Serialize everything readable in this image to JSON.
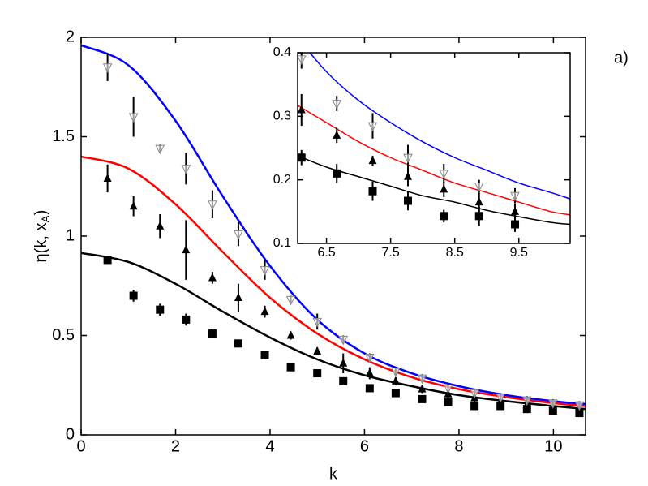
{
  "chart_data": [
    {
      "type": "scatter",
      "panel": "main",
      "annotation": "a)",
      "xlabel": "k",
      "ylabel": {
        "text": "η(k, x",
        "subscript": "A",
        "suffix": ")"
      },
      "xlim": [
        0,
        10.68
      ],
      "ylim": [
        0,
        2
      ],
      "xticks": [
        0,
        2,
        4,
        6,
        8,
        10
      ],
      "yticks": [
        0,
        0.5,
        1,
        1.5,
        2
      ],
      "series": [
        {
          "kind": "line",
          "color": "#0000ff",
          "x": [
            0,
            1,
            2,
            3,
            4,
            5,
            6,
            7,
            8,
            9,
            10,
            10.68
          ],
          "values": [
            1.96,
            1.86,
            1.58,
            1.2,
            0.85,
            0.58,
            0.41,
            0.31,
            0.245,
            0.2,
            0.17,
            0.155
          ]
        },
        {
          "kind": "line",
          "color": "#ff0000",
          "x": [
            0,
            1,
            2,
            3,
            4,
            5,
            6,
            7,
            8,
            9,
            10,
            10.68
          ],
          "values": [
            1.4,
            1.34,
            1.16,
            0.92,
            0.69,
            0.51,
            0.38,
            0.29,
            0.23,
            0.19,
            0.16,
            0.145
          ]
        },
        {
          "kind": "line",
          "color": "#000000",
          "x": [
            0,
            1,
            2,
            3,
            4,
            5,
            6,
            7,
            8,
            9,
            10,
            10.68
          ],
          "values": [
            0.915,
            0.87,
            0.76,
            0.62,
            0.49,
            0.38,
            0.3,
            0.245,
            0.2,
            0.17,
            0.145,
            0.13
          ]
        },
        {
          "kind": "points",
          "marker": "square",
          "color": "#000000",
          "x": [
            0.56,
            1.11,
            1.67,
            2.22,
            2.78,
            3.33,
            3.89,
            4.44,
            5.0,
            5.55,
            6.11,
            6.66,
            7.22,
            7.77,
            8.33,
            8.88,
            9.44,
            9.99,
            10.55
          ],
          "values": [
            0.88,
            0.7,
            0.63,
            0.58,
            0.51,
            0.46,
            0.4,
            0.34,
            0.31,
            0.27,
            0.235,
            0.21,
            0.18,
            0.165,
            0.145,
            0.145,
            0.13,
            0.12,
            0.11
          ],
          "errors": [
            0.02,
            0.03,
            0.03,
            0.03,
            0.02,
            0.01,
            0.01,
            0.01,
            0.01,
            0.01,
            0.01,
            0.01,
            0.01,
            0.01,
            0.01,
            0.01,
            0.01,
            0.01,
            0.01
          ]
        },
        {
          "kind": "points",
          "marker": "triangle-up",
          "color": "#000000",
          "x": [
            0.56,
            1.11,
            1.67,
            2.22,
            2.78,
            3.33,
            3.89,
            4.44,
            5.0,
            5.55,
            6.11,
            6.66,
            7.22,
            7.77,
            8.33,
            8.88,
            9.44,
            9.99,
            10.55
          ],
          "values": [
            1.29,
            1.15,
            1.05,
            0.93,
            0.79,
            0.69,
            0.62,
            0.5,
            0.42,
            0.36,
            0.31,
            0.27,
            0.23,
            0.205,
            0.185,
            0.165,
            0.15,
            0.14,
            0.13
          ],
          "errors": [
            0.07,
            0.05,
            0.06,
            0.15,
            0.03,
            0.07,
            0.03,
            0.02,
            0.02,
            0.05,
            0.03,
            0.02,
            0.02,
            0.02,
            0.02,
            0.02,
            0.02,
            0.02,
            0.02
          ]
        },
        {
          "kind": "points",
          "marker": "triangle-down",
          "color": "#888888",
          "x": [
            0.56,
            1.11,
            1.67,
            2.22,
            2.78,
            3.33,
            3.89,
            4.44,
            5.0,
            5.55,
            6.11,
            6.66,
            7.22,
            7.77,
            8.33,
            8.88,
            9.44,
            9.99,
            10.55
          ],
          "values": [
            1.85,
            1.6,
            1.44,
            1.34,
            1.16,
            1.01,
            0.83,
            0.68,
            0.57,
            0.48,
            0.39,
            0.32,
            0.285,
            0.235,
            0.21,
            0.19,
            0.175,
            0.16,
            0.15
          ],
          "errors": [
            0.07,
            0.1,
            0.02,
            0.08,
            0.07,
            0.06,
            0.05,
            0.02,
            0.04,
            0.02,
            0.02,
            0.02,
            0.02,
            0.02,
            0.02,
            0.02,
            0.02,
            0.02,
            0.02
          ]
        }
      ]
    },
    {
      "type": "scatter",
      "panel": "inset",
      "xlim": [
        6.05,
        10.3
      ],
      "ylim": [
        0.1,
        0.4
      ],
      "xticks": [
        6.5,
        7.5,
        8.5,
        9.5
      ],
      "yticks": [
        0.1,
        0.2,
        0.3,
        0.4
      ],
      "series": [
        {
          "kind": "line",
          "color": "#0000ff",
          "x": [
            6,
            6.5,
            7,
            7.5,
            8,
            8.5,
            9,
            9.5,
            10,
            10.3
          ],
          "values": [
            0.43,
            0.37,
            0.325,
            0.29,
            0.26,
            0.235,
            0.215,
            0.195,
            0.18,
            0.17
          ]
        },
        {
          "kind": "line",
          "color": "#ff0000",
          "x": [
            6,
            6.5,
            7,
            7.5,
            8,
            8.5,
            9,
            9.5,
            10,
            10.3
          ],
          "values": [
            0.32,
            0.29,
            0.26,
            0.235,
            0.215,
            0.195,
            0.18,
            0.165,
            0.15,
            0.145
          ]
        },
        {
          "kind": "line",
          "color": "#000000",
          "x": [
            6,
            6.5,
            7,
            7.5,
            8,
            8.5,
            9,
            9.5,
            10,
            10.3
          ],
          "values": [
            0.24,
            0.22,
            0.205,
            0.19,
            0.175,
            0.165,
            0.152,
            0.142,
            0.133,
            0.13
          ]
        },
        {
          "kind": "points",
          "marker": "square",
          "color": "#000000",
          "x": [
            6.11,
            6.66,
            7.22,
            7.77,
            8.33,
            8.88,
            9.44
          ],
          "values": [
            0.235,
            0.21,
            0.182,
            0.167,
            0.143,
            0.143,
            0.13
          ],
          "errors": [
            0.012,
            0.015,
            0.015,
            0.015,
            0.01,
            0.015,
            0.012
          ]
        },
        {
          "kind": "points",
          "marker": "triangle-up",
          "color": "#000000",
          "x": [
            6.11,
            6.66,
            7.22,
            7.77,
            8.33,
            8.88,
            9.44
          ],
          "values": [
            0.31,
            0.27,
            0.23,
            0.205,
            0.185,
            0.165,
            0.15
          ],
          "errors": [
            0.025,
            0.012,
            0.008,
            0.015,
            0.012,
            0.015,
            0.012
          ]
        },
        {
          "kind": "points",
          "marker": "triangle-down",
          "color": "#888888",
          "x": [
            6.11,
            6.66,
            7.22,
            7.77,
            8.33,
            8.88,
            9.44
          ],
          "values": [
            0.39,
            0.32,
            0.285,
            0.235,
            0.21,
            0.19,
            0.175
          ],
          "errors": [
            0.015,
            0.012,
            0.02,
            0.02,
            0.015,
            0.01,
            0.012
          ]
        }
      ]
    }
  ]
}
